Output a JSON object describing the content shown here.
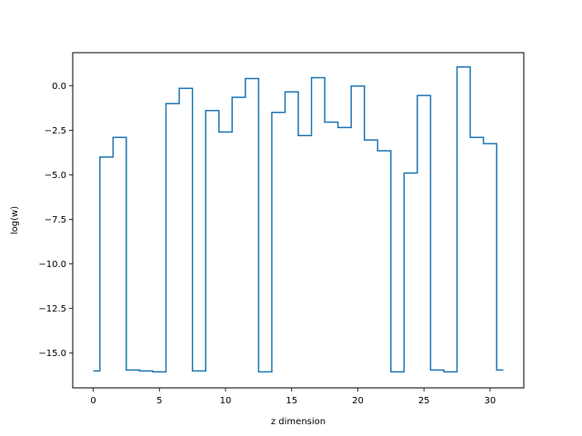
{
  "chart_data": {
    "type": "line",
    "drawstyle": "steps-mid",
    "title": "",
    "xlabel": "z dimension",
    "ylabel": "log(w)",
    "xlim": [
      -1.55,
      32.55
    ],
    "ylim": [
      -16.95,
      1.85
    ],
    "xticks": [
      0,
      5,
      10,
      15,
      20,
      25,
      30
    ],
    "xtick_labels": [
      "0",
      "5",
      "10",
      "15",
      "20",
      "25",
      "30"
    ],
    "yticks": [
      0.0,
      -2.5,
      -5.0,
      -7.5,
      -10.0,
      -12.5,
      -15.0
    ],
    "ytick_labels": [
      "0.0",
      "−2.5",
      "−5.0",
      "−7.5",
      "−10.0",
      "−12.5",
      "−15.0"
    ],
    "grid": false,
    "legend": "none",
    "line_color": "#1f77b4",
    "series": [
      {
        "x": [
          0,
          1,
          2,
          3,
          4,
          5,
          6,
          7,
          8,
          9,
          10,
          11,
          12,
          13,
          14,
          15,
          16,
          17,
          18,
          19,
          20,
          21,
          22,
          23,
          24,
          25,
          26,
          27,
          28,
          29,
          30,
          31
        ],
        "values": [
          -16.0,
          -4.0,
          -2.9,
          -15.95,
          -16.0,
          -16.05,
          -1.0,
          -0.15,
          -16.0,
          -1.4,
          -2.6,
          -0.65,
          0.4,
          -16.05,
          -1.5,
          -0.35,
          -2.8,
          0.45,
          -2.05,
          -2.35,
          -0.02,
          -3.05,
          -3.65,
          -16.05,
          -4.9,
          -0.55,
          -15.95,
          -16.05,
          1.05,
          -2.9,
          -3.25,
          -15.95
        ]
      }
    ]
  }
}
